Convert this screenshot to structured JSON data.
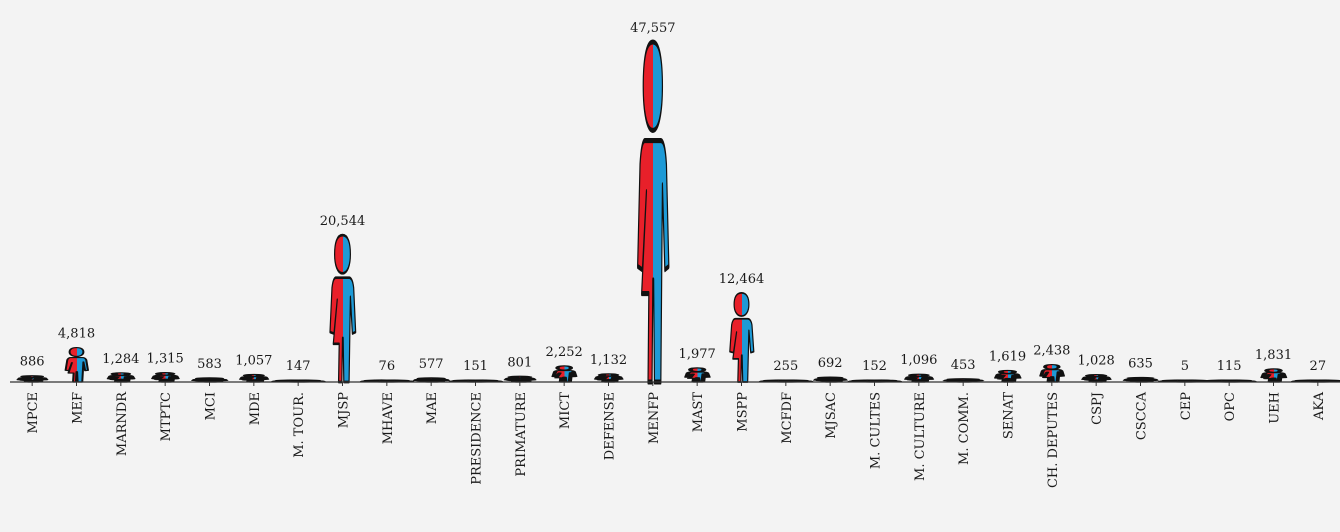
{
  "chart_data": {
    "type": "bar",
    "mark": "pictogram-person-split",
    "categories": [
      "MPCE",
      "MEF",
      "MARNDR",
      "MTPTC",
      "MCI",
      "MDE",
      "M. TOUR.",
      "MJSP",
      "MHAVE",
      "MAE",
      "PRESIDENCE",
      "PRIMATURE",
      "MICT",
      "DEFENSE",
      "MENFP",
      "MAST",
      "MSPP",
      "MCFDF",
      "MJSAC",
      "M. CULTES",
      "M. CULTURE",
      "M. COMM.",
      "SENAT",
      "CH. DEPUTES",
      "CSPJ",
      "CSCCA",
      "CEP",
      "OPC",
      "UEH",
      "AKA"
    ],
    "values": [
      886,
      4818,
      1284,
      1315,
      583,
      1057,
      147,
      20544,
      76,
      577,
      151,
      801,
      2252,
      1132,
      47557,
      1977,
      12464,
      255,
      692,
      152,
      1096,
      453,
      1619,
      2438,
      1028,
      635,
      5,
      115,
      1831,
      27
    ],
    "value_labels": [
      "886",
      "4,818",
      "1,284",
      "1,315",
      "583",
      "1,057",
      "147",
      "20,544",
      "76",
      "577",
      "151",
      "801",
      "2,252",
      "1,132",
      "47,557",
      "1,977",
      "12,464",
      "255",
      "692",
      "152",
      "1,096",
      "453",
      "1,619",
      "2,438",
      "1,028",
      "635",
      "5",
      "115",
      "1,831",
      "27"
    ],
    "title": "",
    "xlabel": "",
    "ylabel": "",
    "ylim": [
      0,
      47557
    ],
    "grid": false,
    "legend": "none",
    "colors": {
      "female": "#e8202a",
      "male": "#1e9ad6",
      "outline": "#111111",
      "background": "#f3f3f3",
      "axis": "#333333"
    }
  }
}
